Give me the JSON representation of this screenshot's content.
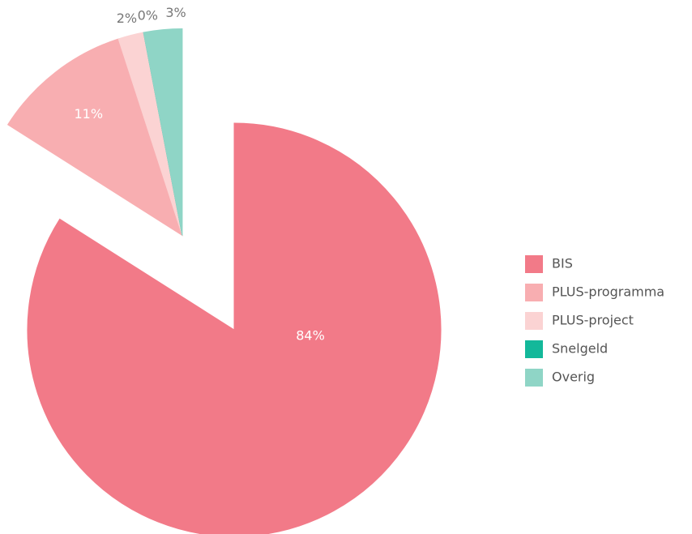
{
  "chart_data": {
    "type": "pie",
    "categories": [
      "BIS",
      "PLUS-programma",
      "PLUS-project",
      "Snelgeld",
      "Overig"
    ],
    "values": [
      84,
      11,
      2,
      0,
      3
    ],
    "value_labels": [
      "84%",
      "11%",
      "2%",
      "0%",
      "3%"
    ],
    "colors": [
      "#f27a88",
      "#f8aeb1",
      "#fbd3d3",
      "#13b89a",
      "#8fd5c6"
    ],
    "legend": "right"
  }
}
